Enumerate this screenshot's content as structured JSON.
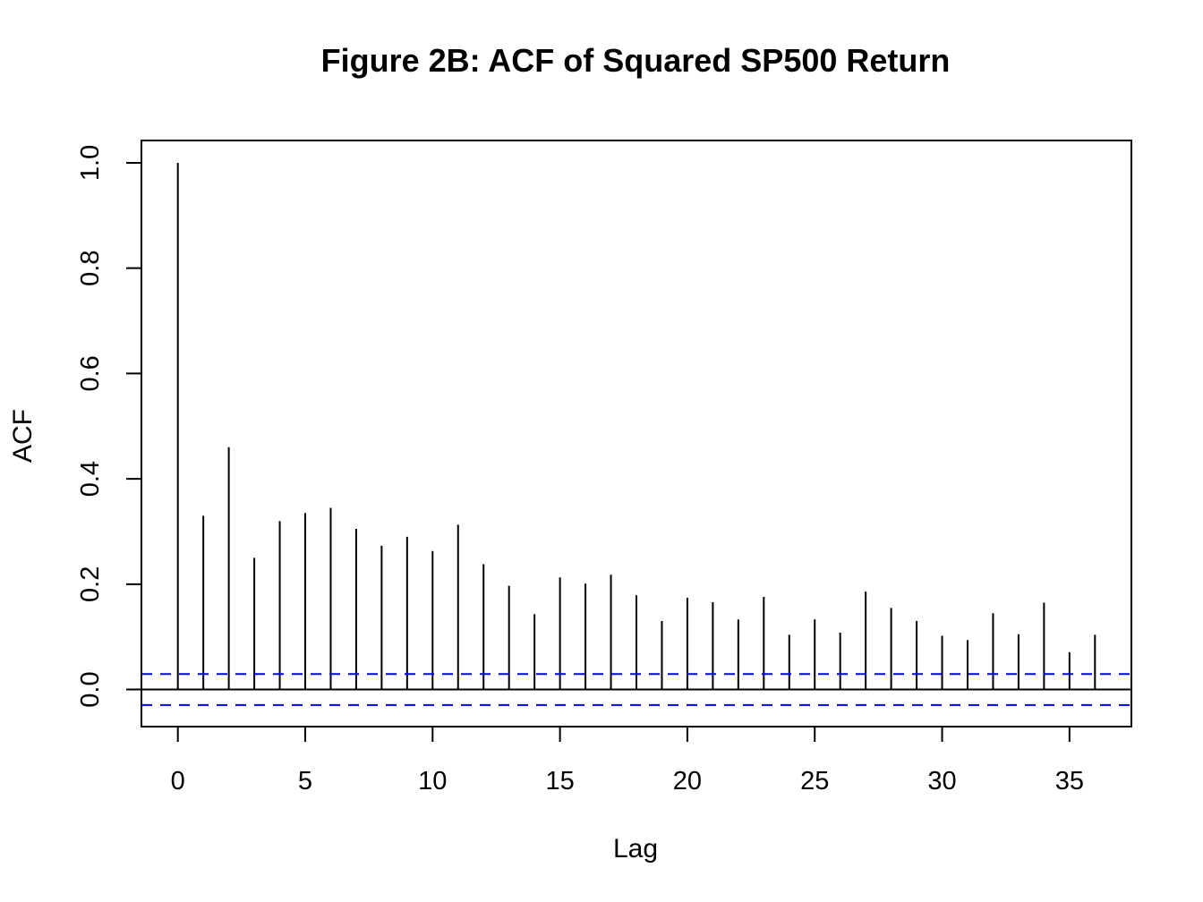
{
  "chart_data": {
    "type": "bar",
    "title": "Figure 2B: ACF of Squared SP500 Return",
    "xlabel": "Lag",
    "ylabel": "ACF",
    "xlim": [
      -1.43,
      37.43
    ],
    "ylim": [
      -0.0704,
      1.0424
    ],
    "x_ticks": [
      0,
      5,
      10,
      15,
      20,
      25,
      30,
      35
    ],
    "y_ticks": [
      0.0,
      0.2,
      0.4,
      0.6,
      0.8,
      1.0
    ],
    "y_tick_labels": [
      "0.0",
      "0.2",
      "0.4",
      "0.6",
      "0.8",
      "1.0"
    ],
    "lags": [
      0,
      1,
      2,
      3,
      4,
      5,
      6,
      7,
      8,
      9,
      10,
      11,
      12,
      13,
      14,
      15,
      16,
      17,
      18,
      19,
      20,
      21,
      22,
      23,
      24,
      25,
      26,
      27,
      28,
      29,
      30,
      31,
      32,
      33,
      34,
      35,
      36
    ],
    "values": [
      1.0,
      0.33,
      0.46,
      0.25,
      0.32,
      0.335,
      0.345,
      0.305,
      0.273,
      0.29,
      0.263,
      0.313,
      0.238,
      0.197,
      0.143,
      0.213,
      0.201,
      0.218,
      0.179,
      0.13,
      0.174,
      0.166,
      0.133,
      0.176,
      0.104,
      0.133,
      0.108,
      0.186,
      0.155,
      0.13,
      0.102,
      0.094,
      0.145,
      0.105,
      0.165,
      0.071,
      0.104
    ],
    "confidence_bound": 0.0295,
    "bound_color": "#0000ff",
    "spike_color": "#000000",
    "grid": false,
    "legend": "none"
  }
}
